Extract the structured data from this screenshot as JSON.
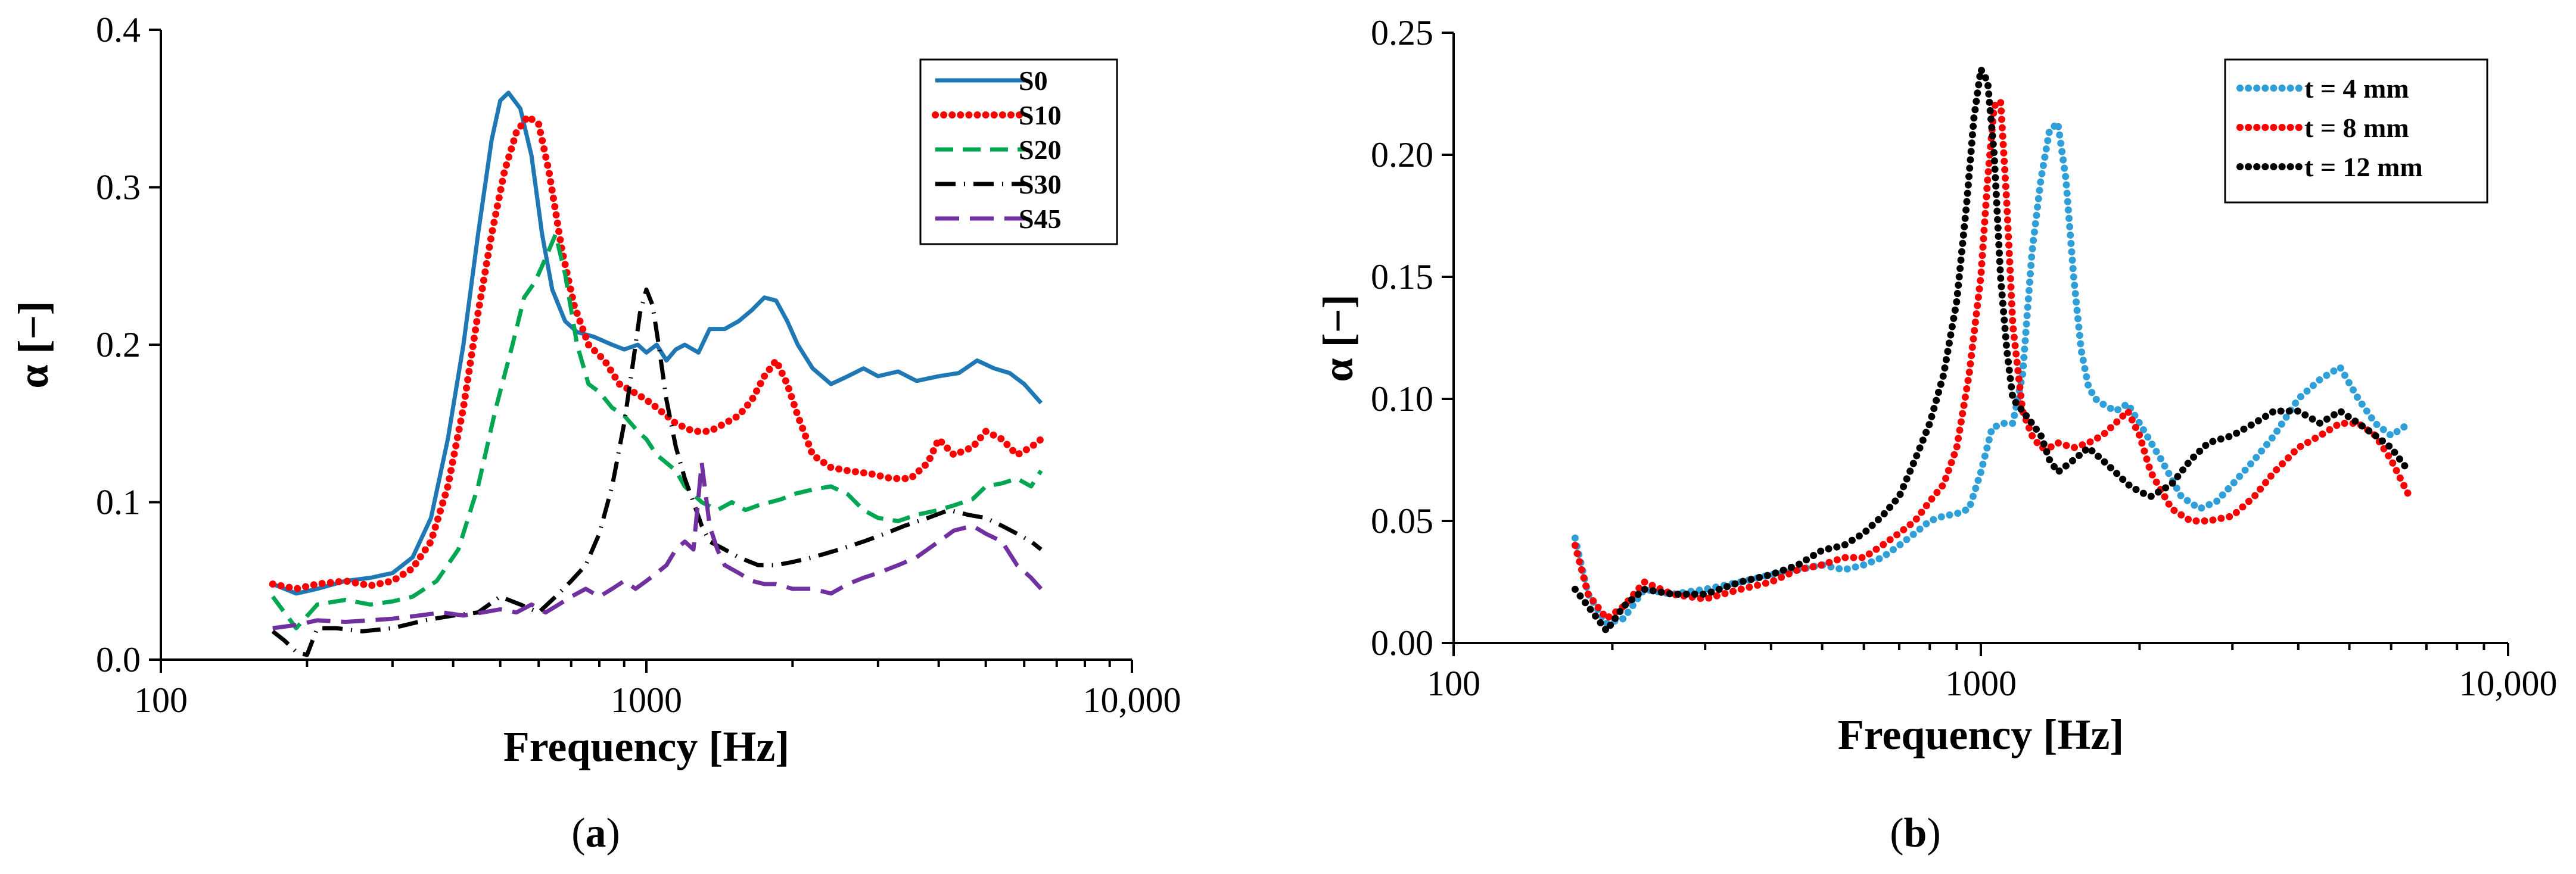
{
  "chart_data": [
    {
      "panel": "a",
      "type": "line",
      "panel_label": "(a)",
      "panel_letter": "a",
      "xlabel": "Frequency [Hz]",
      "ylabel": "α [−]",
      "xscale": "log",
      "xlim": [
        100,
        10000
      ],
      "ylim": [
        0,
        0.4
      ],
      "x_ticks": [
        100,
        1000,
        10000
      ],
      "x_tick_labels": [
        "100",
        "1000",
        "10,000"
      ],
      "y_ticks": [
        0,
        0.1,
        0.2,
        0.3,
        0.4
      ],
      "y_tick_labels": [
        "0.0",
        "0.1",
        "0.2",
        "0.3",
        "0.4"
      ],
      "legend_position": "top-right",
      "series": [
        {
          "name": "S0",
          "color": "#1f77b4",
          "style": "solid",
          "x": [
            170,
            190,
            210,
            240,
            270,
            300,
            330,
            360,
            390,
            420,
            450,
            480,
            500,
            520,
            550,
            580,
            610,
            640,
            680,
            720,
            780,
            850,
            900,
            960,
            1000,
            1050,
            1100,
            1150,
            1200,
            1280,
            1350,
            1450,
            1550,
            1650,
            1750,
            1850,
            1950,
            2050,
            2200,
            2400,
            2600,
            2800,
            3000,
            3300,
            3600,
            4000,
            4400,
            4800,
            5200,
            5600,
            6000,
            6500
          ],
          "y": [
            0.048,
            0.042,
            0.045,
            0.05,
            0.052,
            0.055,
            0.065,
            0.09,
            0.14,
            0.2,
            0.27,
            0.33,
            0.355,
            0.36,
            0.35,
            0.32,
            0.27,
            0.235,
            0.215,
            0.208,
            0.205,
            0.2,
            0.197,
            0.2,
            0.195,
            0.2,
            0.19,
            0.197,
            0.2,
            0.195,
            0.21,
            0.21,
            0.215,
            0.222,
            0.23,
            0.228,
            0.215,
            0.2,
            0.185,
            0.175,
            0.18,
            0.185,
            0.18,
            0.183,
            0.177,
            0.18,
            0.182,
            0.19,
            0.185,
            0.182,
            0.175,
            0.163
          ]
        },
        {
          "name": "S10",
          "color": "#ff0000",
          "style": "dotted",
          "x": [
            170,
            190,
            210,
            240,
            270,
            300,
            330,
            360,
            390,
            420,
            450,
            480,
            510,
            540,
            570,
            600,
            630,
            670,
            710,
            760,
            820,
            880,
            940,
            1000,
            1050,
            1100,
            1150,
            1250,
            1350,
            1450,
            1550,
            1650,
            1750,
            1850,
            1950,
            2050,
            2200,
            2400,
            2600,
            2900,
            3200,
            3500,
            3800,
            4000,
            4300,
            4700,
            5000,
            5400,
            5800,
            6200,
            6500
          ],
          "y": [
            0.048,
            0.045,
            0.048,
            0.05,
            0.047,
            0.05,
            0.058,
            0.075,
            0.11,
            0.16,
            0.22,
            0.27,
            0.31,
            0.335,
            0.345,
            0.34,
            0.31,
            0.26,
            0.225,
            0.2,
            0.19,
            0.175,
            0.17,
            0.165,
            0.16,
            0.155,
            0.15,
            0.145,
            0.145,
            0.15,
            0.155,
            0.165,
            0.18,
            0.19,
            0.175,
            0.155,
            0.13,
            0.122,
            0.12,
            0.118,
            0.115,
            0.115,
            0.125,
            0.14,
            0.13,
            0.135,
            0.145,
            0.14,
            0.13,
            0.135,
            0.14
          ]
        },
        {
          "name": "S20",
          "color": "#00a651",
          "style": "dashed",
          "x": [
            170,
            190,
            210,
            240,
            270,
            300,
            330,
            370,
            410,
            450,
            490,
            530,
            560,
            590,
            620,
            650,
            680,
            720,
            760,
            800,
            850,
            900,
            960,
            1000,
            1050,
            1100,
            1150,
            1200,
            1300,
            1400,
            1500,
            1600,
            1700,
            1800,
            1900,
            2000,
            2200,
            2400,
            2600,
            2800,
            3000,
            3300,
            3600,
            4000,
            4300,
            4700,
            5000,
            5400,
            5800,
            6200,
            6500
          ],
          "y": [
            0.04,
            0.02,
            0.035,
            0.038,
            0.035,
            0.037,
            0.04,
            0.05,
            0.07,
            0.11,
            0.16,
            0.2,
            0.23,
            0.24,
            0.255,
            0.27,
            0.245,
            0.2,
            0.175,
            0.17,
            0.16,
            0.155,
            0.145,
            0.14,
            0.13,
            0.125,
            0.12,
            0.11,
            0.1,
            0.095,
            0.1,
            0.095,
            0.098,
            0.1,
            0.102,
            0.105,
            0.108,
            0.11,
            0.105,
            0.095,
            0.09,
            0.088,
            0.092,
            0.095,
            0.098,
            0.102,
            0.11,
            0.112,
            0.115,
            0.11,
            0.12
          ]
        },
        {
          "name": "S30",
          "color": "#000000",
          "style": "dashdot",
          "x": [
            170,
            180,
            190,
            200,
            210,
            230,
            260,
            300,
            350,
            400,
            450,
            500,
            550,
            600,
            650,
            700,
            750,
            800,
            850,
            900,
            940,
            970,
            1000,
            1030,
            1060,
            1100,
            1150,
            1200,
            1250,
            1300,
            1350,
            1450,
            1550,
            1700,
            1850,
            2000,
            2200,
            2500,
            2800,
            3100,
            3400,
            3800,
            4200,
            4600,
            5000,
            5400,
            5800,
            6200,
            6500
          ],
          "y": [
            0.018,
            0.012,
            0.005,
            0.003,
            0.02,
            0.02,
            0.018,
            0.02,
            0.025,
            0.028,
            0.03,
            0.04,
            0.035,
            0.03,
            0.04,
            0.05,
            0.06,
            0.08,
            0.11,
            0.15,
            0.19,
            0.22,
            0.235,
            0.225,
            0.2,
            0.165,
            0.135,
            0.115,
            0.1,
            0.085,
            0.075,
            0.07,
            0.065,
            0.06,
            0.06,
            0.062,
            0.065,
            0.07,
            0.075,
            0.08,
            0.085,
            0.09,
            0.095,
            0.092,
            0.09,
            0.085,
            0.08,
            0.075,
            0.07
          ]
        },
        {
          "name": "S45",
          "color": "#7030a0",
          "style": "longdash",
          "x": [
            170,
            190,
            210,
            240,
            270,
            300,
            340,
            380,
            420,
            460,
            500,
            540,
            580,
            620,
            660,
            700,
            750,
            800,
            850,
            900,
            950,
            1000,
            1050,
            1100,
            1150,
            1200,
            1250,
            1300,
            1350,
            1400,
            1450,
            1550,
            1650,
            1750,
            1850,
            2000,
            2200,
            2400,
            2600,
            2800,
            3000,
            3300,
            3600,
            4000,
            4300,
            4700,
            5000,
            5400,
            5800,
            6200,
            6500
          ],
          "y": [
            0.02,
            0.022,
            0.025,
            0.024,
            0.025,
            0.026,
            0.028,
            0.03,
            0.028,
            0.03,
            0.032,
            0.03,
            0.035,
            0.03,
            0.035,
            0.04,
            0.045,
            0.04,
            0.045,
            0.05,
            0.045,
            0.05,
            0.055,
            0.06,
            0.07,
            0.075,
            0.07,
            0.125,
            0.085,
            0.07,
            0.06,
            0.055,
            0.05,
            0.048,
            0.048,
            0.045,
            0.045,
            0.042,
            0.048,
            0.052,
            0.055,
            0.06,
            0.065,
            0.075,
            0.082,
            0.085,
            0.08,
            0.075,
            0.06,
            0.052,
            0.045
          ]
        }
      ]
    },
    {
      "panel": "b",
      "type": "scatter",
      "panel_label": "(b)",
      "panel_letter": "b",
      "xlabel": "Frequency [Hz]",
      "ylabel": "α [−]",
      "xscale": "log",
      "xlim": [
        100,
        10000
      ],
      "ylim": [
        0,
        0.25
      ],
      "x_ticks": [
        100,
        1000,
        10000
      ],
      "x_tick_labels": [
        "100",
        "1000",
        "10,000"
      ],
      "y_ticks": [
        0,
        0.05,
        0.1,
        0.15,
        0.2,
        0.25
      ],
      "y_tick_labels": [
        "0.00",
        "0.05",
        "0.10",
        "0.15",
        "0.20",
        "0.25"
      ],
      "legend_position": "top-right",
      "series": [
        {
          "name": "t = 4 mm",
          "color": "#2e9fd8",
          "style": "dotted",
          "x": [
            170,
            180,
            195,
            210,
            230,
            260,
            300,
            350,
            400,
            450,
            500,
            550,
            600,
            650,
            700,
            750,
            800,
            850,
            900,
            950,
            1000,
            1050,
            1100,
            1150,
            1200,
            1250,
            1300,
            1350,
            1400,
            1450,
            1500,
            1550,
            1600,
            1650,
            1700,
            1800,
            1900,
            2000,
            2200,
            2400,
            2600,
            2800,
            3000,
            3300,
            3600,
            4000,
            4400,
            4800,
            5200,
            5600,
            6000,
            6500
          ],
          "y": [
            0.043,
            0.02,
            0.008,
            0.01,
            0.022,
            0.02,
            0.022,
            0.025,
            0.028,
            0.03,
            0.032,
            0.03,
            0.032,
            0.035,
            0.04,
            0.045,
            0.05,
            0.052,
            0.053,
            0.055,
            0.07,
            0.088,
            0.09,
            0.09,
            0.11,
            0.16,
            0.19,
            0.21,
            0.213,
            0.19,
            0.15,
            0.12,
            0.105,
            0.1,
            0.098,
            0.095,
            0.098,
            0.09,
            0.075,
            0.06,
            0.055,
            0.058,
            0.065,
            0.075,
            0.085,
            0.1,
            0.108,
            0.113,
            0.1,
            0.09,
            0.085,
            0.09
          ]
        },
        {
          "name": "t = 8 mm",
          "color": "#ff0000",
          "style": "dotted",
          "x": [
            170,
            180,
            195,
            210,
            230,
            260,
            300,
            350,
            400,
            450,
            500,
            550,
            600,
            650,
            700,
            750,
            800,
            850,
            900,
            950,
            1000,
            1030,
            1060,
            1090,
            1120,
            1150,
            1200,
            1250,
            1300,
            1350,
            1400,
            1500,
            1600,
            1700,
            1800,
            1900,
            2000,
            2100,
            2300,
            2500,
            2700,
            3000,
            3300,
            3600,
            4000,
            4400,
            4800,
            5200,
            5600,
            6000,
            6500
          ],
          "y": [
            0.04,
            0.02,
            0.01,
            0.015,
            0.025,
            0.02,
            0.018,
            0.022,
            0.025,
            0.03,
            0.032,
            0.035,
            0.035,
            0.04,
            0.045,
            0.05,
            0.058,
            0.065,
            0.08,
            0.11,
            0.15,
            0.19,
            0.22,
            0.222,
            0.18,
            0.13,
            0.095,
            0.085,
            0.08,
            0.08,
            0.082,
            0.08,
            0.082,
            0.085,
            0.09,
            0.095,
            0.085,
            0.07,
            0.055,
            0.05,
            0.05,
            0.052,
            0.06,
            0.07,
            0.08,
            0.085,
            0.09,
            0.09,
            0.085,
            0.075,
            0.06
          ]
        },
        {
          "name": "t = 12 mm",
          "color": "#000000",
          "style": "dotted",
          "x": [
            170,
            180,
            195,
            210,
            230,
            260,
            300,
            350,
            400,
            450,
            500,
            550,
            600,
            650,
            700,
            750,
            800,
            850,
            900,
            940,
            970,
            1000,
            1030,
            1060,
            1090,
            1120,
            1150,
            1200,
            1250,
            1300,
            1350,
            1400,
            1500,
            1600,
            1700,
            1800,
            1900,
            2000,
            2100,
            2300,
            2500,
            2700,
            3000,
            3300,
            3600,
            4000,
            4400,
            4800,
            5200,
            5600,
            6000,
            6500
          ],
          "y": [
            0.022,
            0.015,
            0.005,
            0.015,
            0.022,
            0.02,
            0.02,
            0.025,
            0.028,
            0.032,
            0.038,
            0.04,
            0.045,
            0.052,
            0.06,
            0.075,
            0.09,
            0.11,
            0.14,
            0.18,
            0.215,
            0.235,
            0.23,
            0.2,
            0.15,
            0.12,
            0.1,
            0.095,
            0.09,
            0.085,
            0.075,
            0.07,
            0.075,
            0.08,
            0.075,
            0.07,
            0.065,
            0.062,
            0.06,
            0.065,
            0.075,
            0.082,
            0.085,
            0.09,
            0.095,
            0.095,
            0.09,
            0.095,
            0.09,
            0.085,
            0.08,
            0.07
          ]
        }
      ]
    }
  ]
}
